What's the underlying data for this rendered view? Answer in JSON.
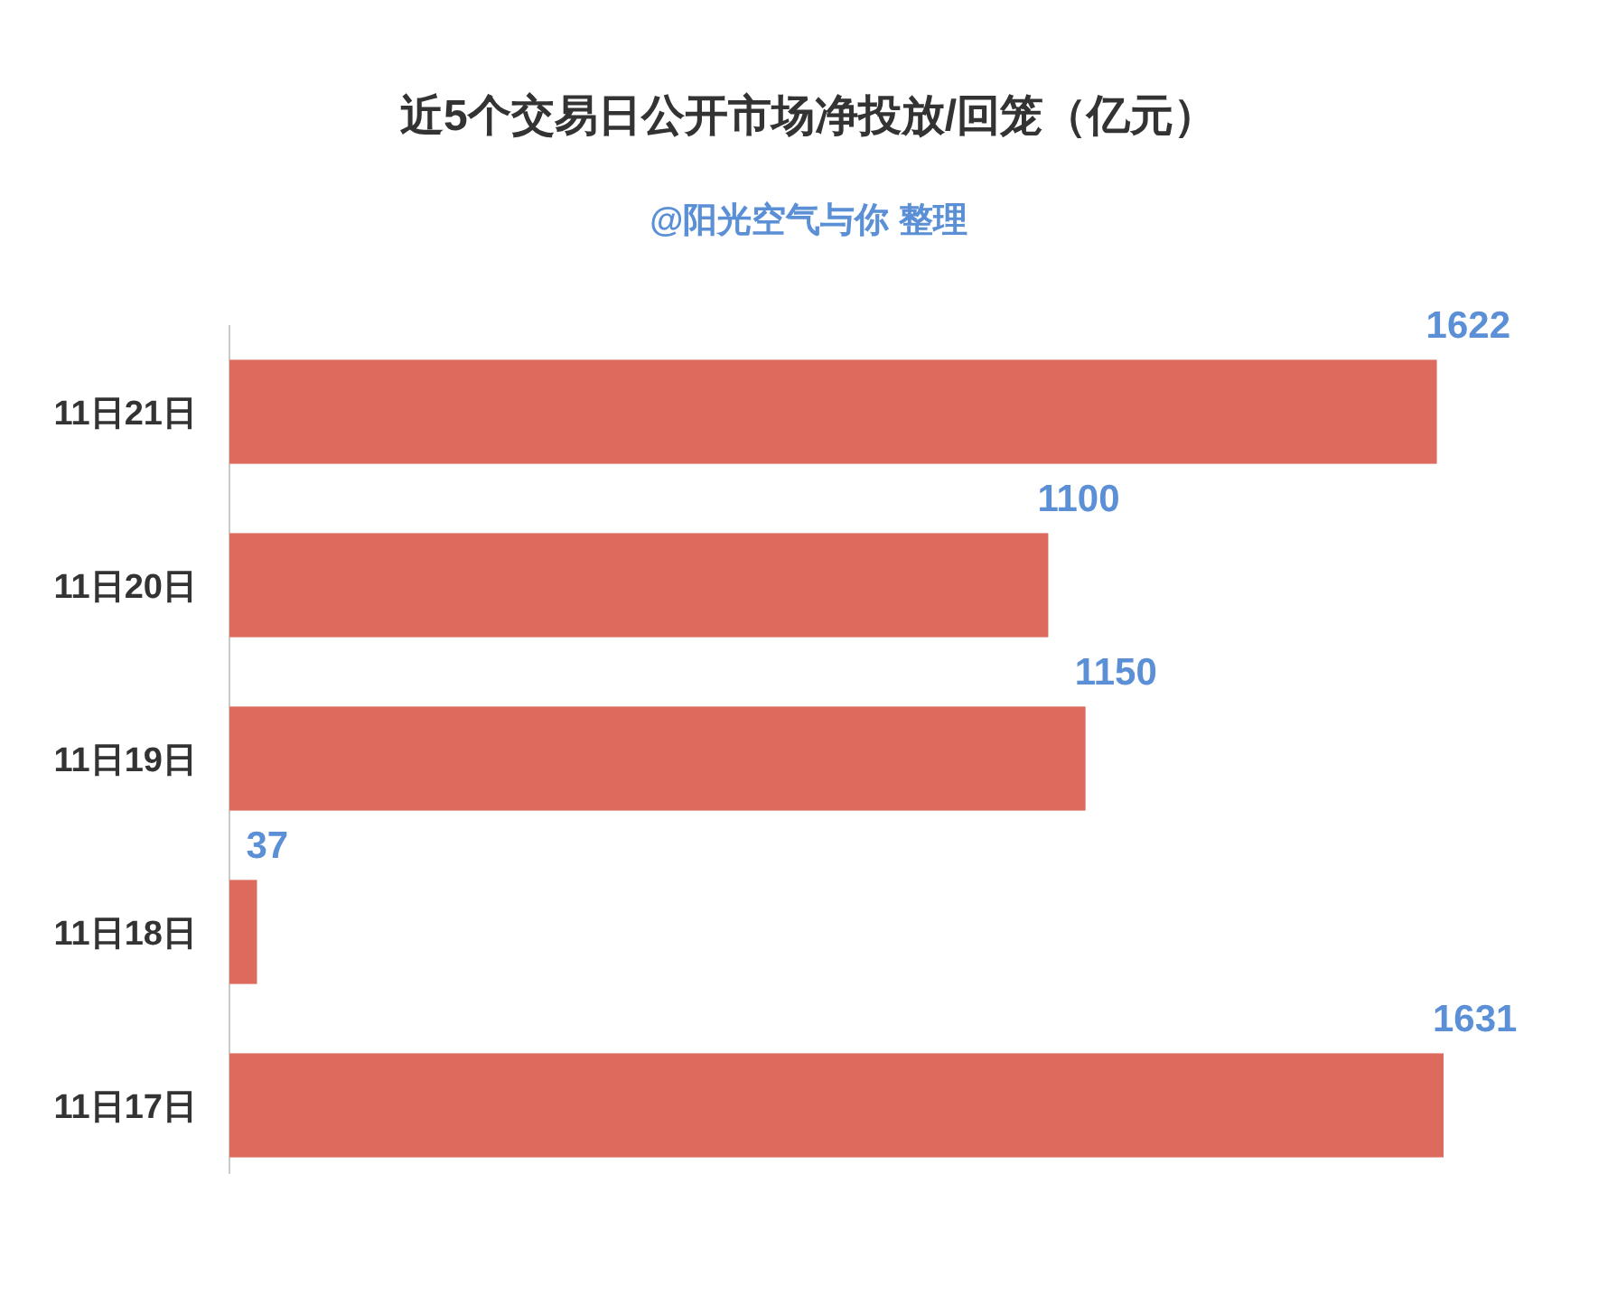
{
  "chart_data": {
    "type": "bar",
    "orientation": "horizontal",
    "title": "近5个交易日公开市场净投放/回笼（亿元）",
    "subtitle": "@阳光空气与你 整理",
    "categories": [
      "11日21日",
      "11日20日",
      "11日19日",
      "11日18日",
      "11日17日"
    ],
    "values": [
      1622,
      1100,
      1150,
      37,
      1631
    ],
    "color": "#dc6b5e",
    "data_labels": true,
    "tick_labels": "y"
  }
}
